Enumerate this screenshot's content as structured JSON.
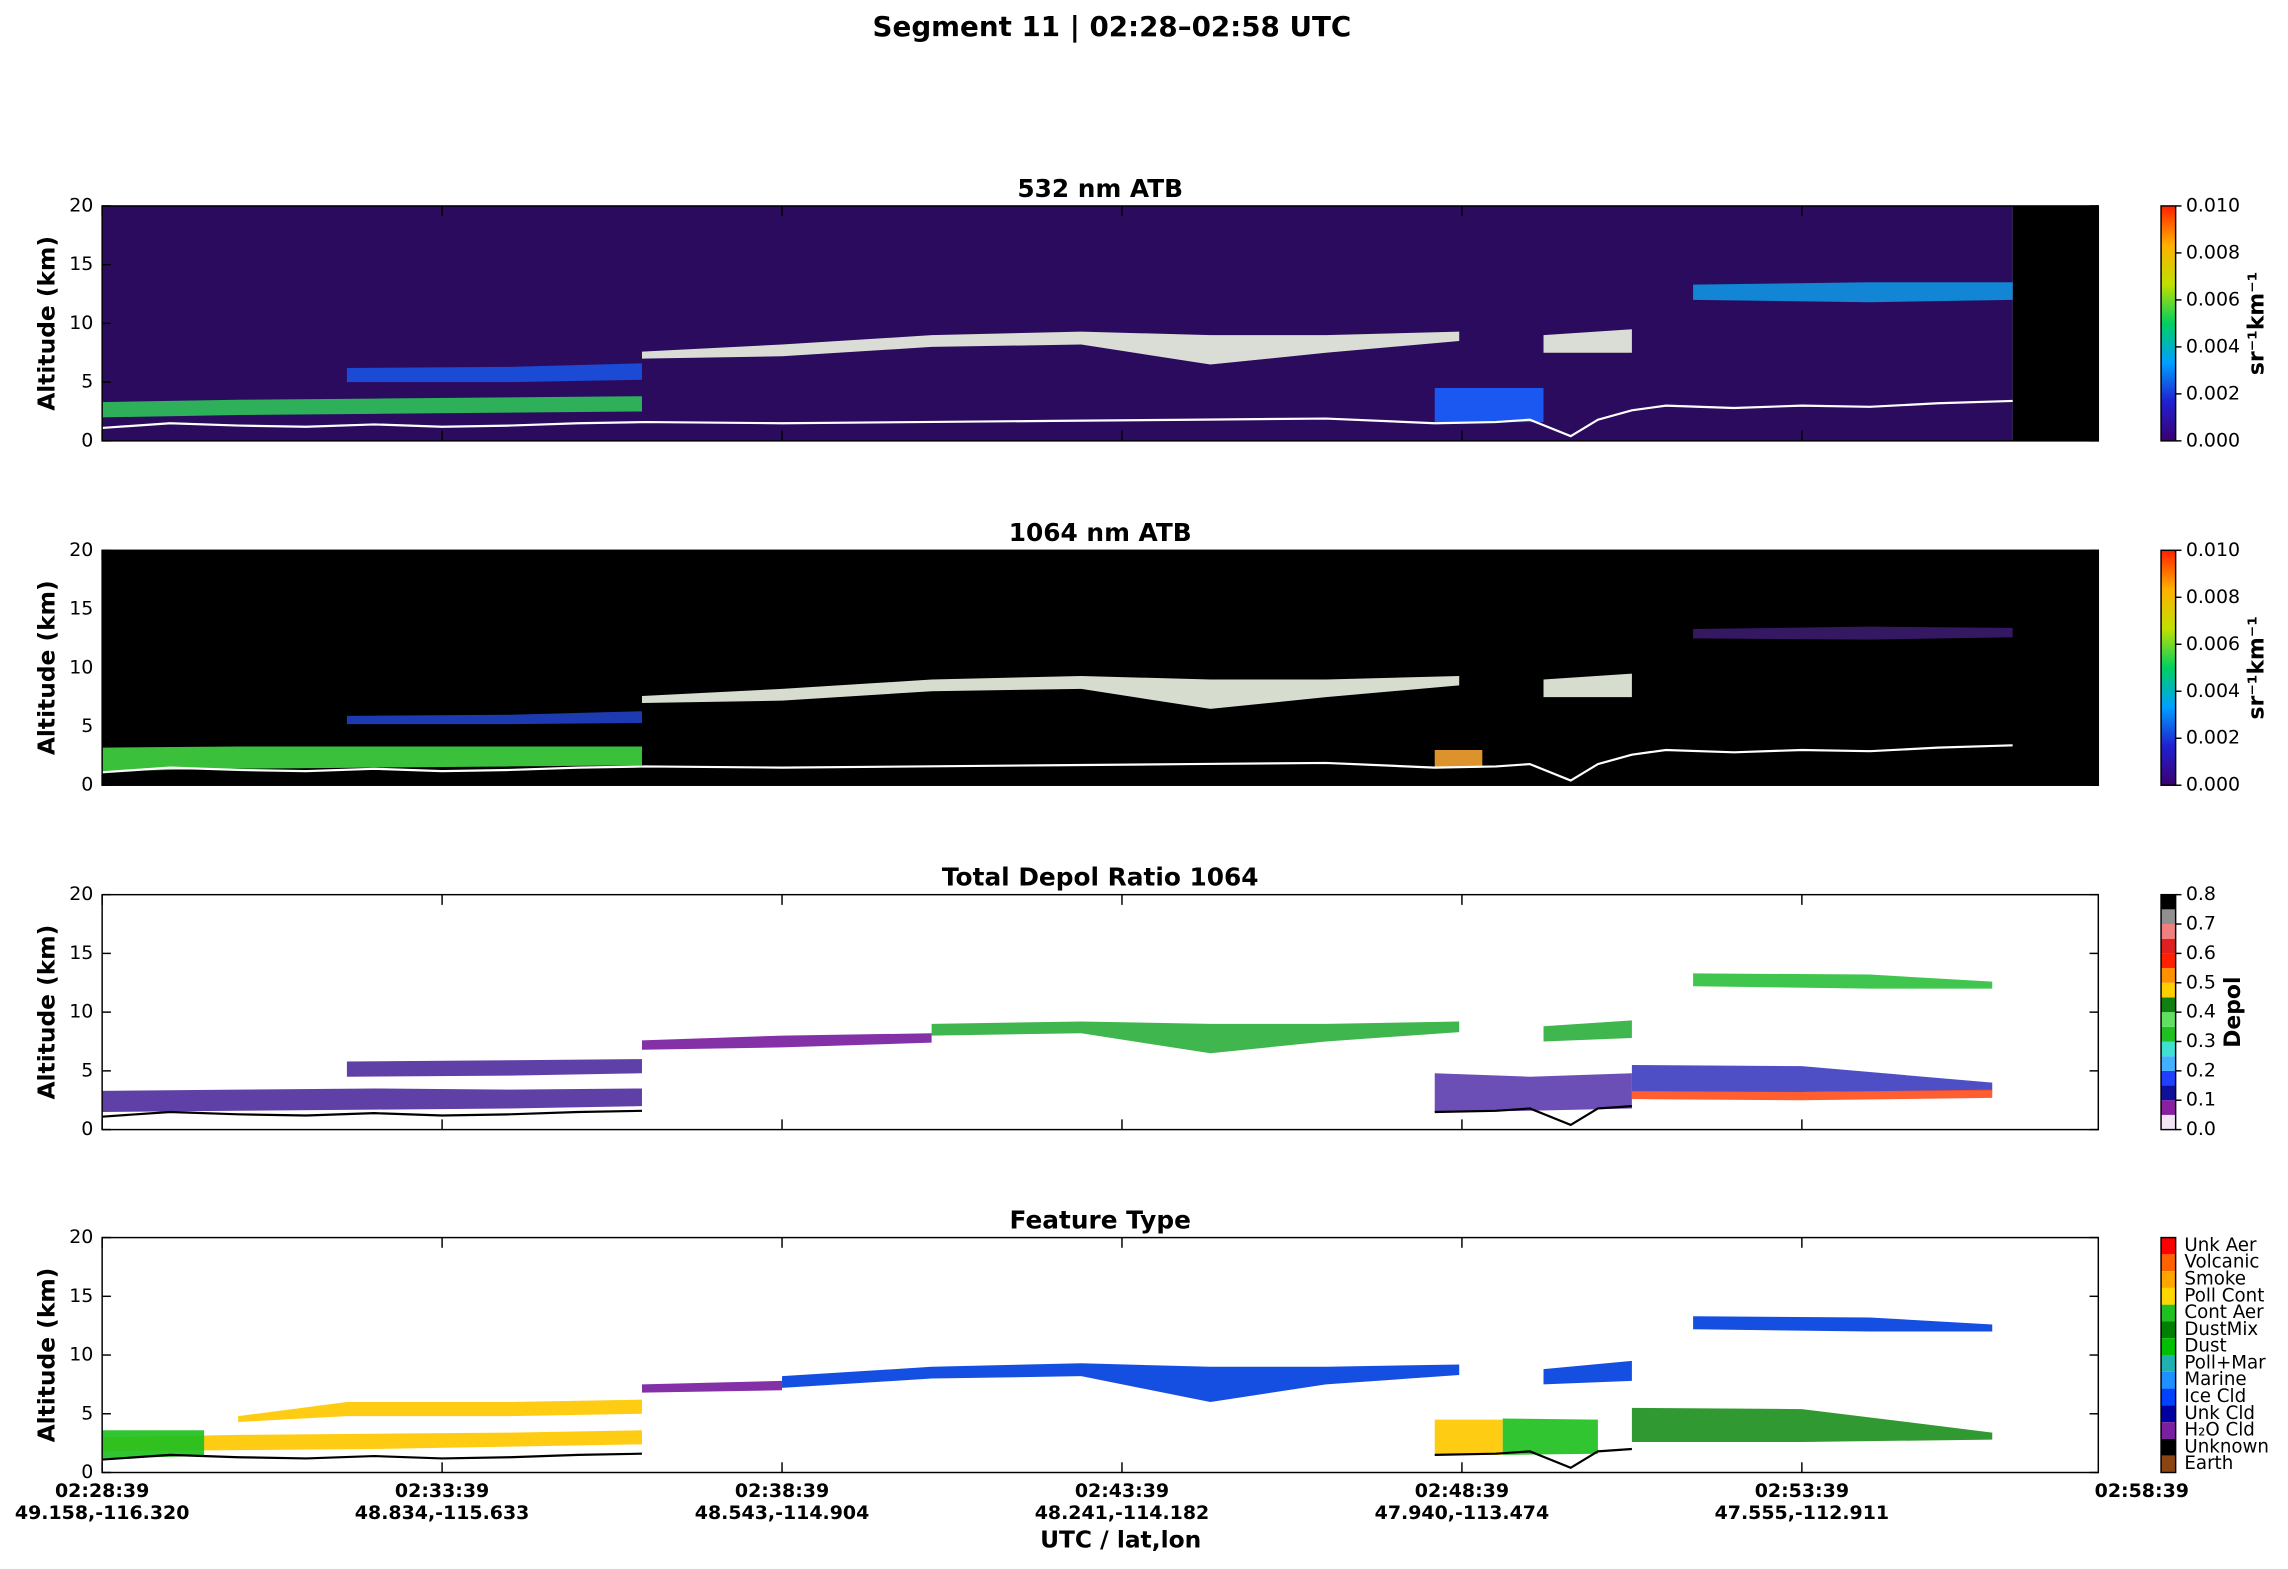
{
  "title": "Segment 11  |  02:28–02:58 UTC",
  "x_label": "UTC / lat,lon",
  "chart_data": [
    {
      "type": "curtain",
      "title": "532 nm ATB",
      "ylabel": "Altitude (km)",
      "xlim": [
        0,
        29.36
      ],
      "xticks": [
        0,
        5,
        10,
        15,
        20,
        25
      ],
      "xticklabels": false,
      "ylim": [
        0,
        20
      ],
      "yticks": [
        0,
        5,
        10,
        15,
        20
      ],
      "background": [
        {
          "color": "#2b0b5e",
          "x": [
            0,
            28.1
          ]
        },
        {
          "color": "#000000",
          "x": [
            28.1,
            29.36
          ]
        }
      ],
      "layers": [
        {
          "color": "#2fbf5a",
          "x": [
            0,
            2,
            4,
            6,
            7.94
          ],
          "base": [
            2,
            2.2,
            2.3,
            2.4,
            2.5
          ],
          "top": [
            3.3,
            3.5,
            3.6,
            3.7,
            3.8
          ]
        },
        {
          "color": "#1a50e0",
          "x": [
            3.6,
            6,
            7.94
          ],
          "base": [
            5,
            5,
            5.2
          ],
          "top": [
            6.2,
            6.3,
            6.6
          ]
        },
        {
          "color": "#e8f0e0",
          "x": [
            7.94,
            10,
            12.2,
            14.4,
            16.3,
            18,
            19.96
          ],
          "base": [
            7,
            7.2,
            8,
            8.2,
            6.5,
            7.5,
            8.5
          ],
          "top": [
            7.6,
            8.2,
            9,
            9.3,
            9,
            9,
            9.3
          ]
        },
        {
          "color": "#1a60ff",
          "x": [
            19.6,
            21.2
          ],
          "base": [
            1.6,
            1.6
          ],
          "top": [
            4.5,
            4.5
          ]
        },
        {
          "color": "#e8f0e0",
          "x": [
            21.2,
            22.5
          ],
          "base": [
            7.5,
            7.5
          ],
          "top": [
            9,
            9.5
          ]
        },
        {
          "color": "#1090e0",
          "x": [
            23.4,
            26,
            28.1
          ],
          "base": [
            12,
            11.8,
            12
          ],
          "top": [
            13.3,
            13.5,
            13.5
          ]
        }
      ],
      "surface": {
        "color": "#ffffff",
        "x": [
          0,
          1,
          2,
          3,
          4,
          5,
          6,
          7,
          8,
          10,
          12,
          14,
          16,
          18,
          19.6,
          20.5,
          21,
          21.6,
          22,
          22.5,
          23,
          24,
          25,
          26,
          27,
          28.1
        ],
        "values": [
          1.1,
          1.5,
          1.3,
          1.2,
          1.4,
          1.2,
          1.3,
          1.5,
          1.6,
          1.5,
          1.6,
          1.7,
          1.8,
          1.9,
          1.5,
          1.6,
          1.8,
          0.4,
          1.8,
          2.6,
          3.0,
          2.8,
          3.0,
          2.9,
          3.2,
          3.4
        ]
      },
      "colorbar": {
        "type": "gradient",
        "label": "sr⁻¹km⁻¹",
        "lim": [
          0,
          0.01
        ],
        "colors": [
          "#3b0070",
          "#2020d0",
          "#00a0ff",
          "#00d060",
          "#c0e000",
          "#ffb000",
          "#ff2000"
        ],
        "ticks": [
          {
            "value": 0,
            "label": "0.000"
          },
          {
            "value": 0.002,
            "label": "0.002"
          },
          {
            "value": 0.004,
            "label": "0.004"
          },
          {
            "value": 0.006,
            "label": "0.006"
          },
          {
            "value": 0.008,
            "label": "0.008"
          },
          {
            "value": 0.01,
            "label": "0.010"
          }
        ]
      }
    },
    {
      "type": "curtain",
      "title": "1064 nm ATB",
      "ylabel": "Altitude (km)",
      "xlim": [
        0,
        29.36
      ],
      "xticks": [
        0,
        5,
        10,
        15,
        20,
        25
      ],
      "xticklabels": false,
      "ylim": [
        0,
        20
      ],
      "yticks": [
        0,
        5,
        10,
        15,
        20
      ],
      "background": [
        {
          "color": "#000000",
          "x": [
            0,
            29.36
          ]
        }
      ],
      "layers": [
        {
          "color": "#40d040",
          "x": [
            0,
            2,
            4,
            6,
            7.94
          ],
          "base": [
            1.2,
            1.4,
            1.5,
            1.6,
            1.7
          ],
          "top": [
            3.2,
            3.3,
            3.3,
            3.3,
            3.3
          ]
        },
        {
          "color": "#2040c0",
          "x": [
            3.6,
            6,
            7.94
          ],
          "base": [
            5.2,
            5.2,
            5.3
          ],
          "top": [
            5.9,
            6.0,
            6.3
          ]
        },
        {
          "color": "#e8f0e0",
          "x": [
            7.94,
            10,
            12.2,
            14.4,
            16.3,
            18,
            19.96
          ],
          "base": [
            7,
            7.2,
            8,
            8.2,
            6.5,
            7.5,
            8.5
          ],
          "top": [
            7.6,
            8.2,
            9,
            9.3,
            9,
            9,
            9.3
          ]
        },
        {
          "color": "#f0a030",
          "x": [
            19.6,
            20.3
          ],
          "base": [
            1.5,
            1.5
          ],
          "top": [
            3,
            3
          ]
        },
        {
          "color": "#e8f0e0",
          "x": [
            21.2,
            22.5
          ],
          "base": [
            7.5,
            7.5
          ],
          "top": [
            9,
            9.5
          ]
        },
        {
          "color": "#3a1a6a",
          "x": [
            23.4,
            26,
            28.1
          ],
          "base": [
            12.5,
            12.4,
            12.6
          ],
          "top": [
            13.3,
            13.5,
            13.4
          ]
        }
      ],
      "surface": {
        "color": "#ffffff",
        "x": [
          0,
          1,
          2,
          3,
          4,
          5,
          6,
          7,
          8,
          10,
          12,
          14,
          16,
          18,
          19.6,
          20.5,
          21,
          21.6,
          22,
          22.5,
          23,
          24,
          25,
          26,
          27,
          28.1
        ],
        "values": [
          1.1,
          1.5,
          1.3,
          1.2,
          1.4,
          1.2,
          1.3,
          1.5,
          1.6,
          1.5,
          1.6,
          1.7,
          1.8,
          1.9,
          1.5,
          1.6,
          1.8,
          0.4,
          1.8,
          2.6,
          3.0,
          2.8,
          3.0,
          2.9,
          3.2,
          3.4
        ]
      },
      "colorbar": {
        "type": "gradient",
        "label": "sr⁻¹km⁻¹",
        "lim": [
          0,
          0.01
        ],
        "colors": [
          "#3b0070",
          "#2020d0",
          "#00a0ff",
          "#00d060",
          "#c0e000",
          "#ffb000",
          "#ff2000"
        ],
        "ticks": [
          {
            "value": 0,
            "label": "0.000"
          },
          {
            "value": 0.002,
            "label": "0.002"
          },
          {
            "value": 0.004,
            "label": "0.004"
          },
          {
            "value": 0.006,
            "label": "0.006"
          },
          {
            "value": 0.008,
            "label": "0.008"
          },
          {
            "value": 0.01,
            "label": "0.010"
          }
        ]
      }
    },
    {
      "type": "curtain",
      "title": "Total Depol Ratio 1064",
      "ylabel": "Altitude (km)",
      "xlim": [
        0,
        29.36
      ],
      "xticks": [
        0,
        5,
        10,
        15,
        20,
        25
      ],
      "xticklabels": false,
      "ylim": [
        0,
        20
      ],
      "yticks": [
        0,
        5,
        10,
        15,
        20
      ],
      "background": [
        {
          "color": "#ffffff",
          "x": [
            0,
            29.36
          ]
        }
      ],
      "layers": [
        {
          "color": "#5030a0",
          "x": [
            0,
            2,
            4,
            6,
            7.94
          ],
          "base": [
            1.5,
            1.6,
            1.7,
            1.8,
            2.0
          ],
          "top": [
            3.3,
            3.4,
            3.5,
            3.4,
            3.5
          ]
        },
        {
          "color": "#5030a0",
          "x": [
            3.6,
            6,
            7.94
          ],
          "base": [
            4.5,
            4.6,
            4.8
          ],
          "top": [
            5.8,
            5.9,
            6.0
          ]
        },
        {
          "color": "#7a1fa0",
          "x": [
            7.94,
            10,
            12.2
          ],
          "base": [
            6.8,
            7.0,
            7.4
          ],
          "top": [
            7.6,
            8.0,
            8.2
          ]
        },
        {
          "color": "#30b040",
          "x": [
            12.2,
            14.4,
            16.3,
            18,
            19.96
          ],
          "base": [
            8,
            8.2,
            6.5,
            7.5,
            8.3
          ],
          "top": [
            9,
            9.2,
            9,
            9,
            9.2
          ]
        },
        {
          "color": "#6040b0",
          "x": [
            19.6,
            21,
            22.5
          ],
          "base": [
            1.5,
            1.6,
            1.8
          ],
          "top": [
            4.8,
            4.5,
            4.8
          ]
        },
        {
          "color": "#30b040",
          "x": [
            21.2,
            22.5
          ],
          "base": [
            7.5,
            7.8
          ],
          "top": [
            8.8,
            9.3
          ]
        },
        {
          "color": "#4040c0",
          "x": [
            22.5,
            25,
            27.8
          ],
          "base": [
            3.2,
            3.2,
            3.3
          ],
          "top": [
            5.5,
            5.4,
            4.0
          ]
        },
        {
          "color": "#ff5020",
          "x": [
            22.5,
            25,
            27.8
          ],
          "base": [
            2.6,
            2.5,
            2.7
          ],
          "top": [
            3.3,
            3.2,
            3.4
          ]
        },
        {
          "color": "#30c040",
          "x": [
            23.4,
            26,
            27.8
          ],
          "base": [
            12.2,
            12,
            12
          ],
          "top": [
            13.3,
            13.2,
            12.6
          ]
        }
      ],
      "surface": {
        "color": "#000000",
        "x": [
          0,
          1,
          2,
          3,
          4,
          5,
          6,
          7,
          7.94,
          13,
          19.6,
          20.5,
          21,
          21.6,
          22,
          22.5
        ],
        "values": [
          1.1,
          1.5,
          1.3,
          1.2,
          1.4,
          1.2,
          1.3,
          1.5,
          1.6,
          null,
          1.5,
          1.6,
          1.8,
          0.4,
          1.8,
          2.0
        ]
      },
      "colorbar": {
        "type": "steps",
        "label": "Depol",
        "lim": [
          0,
          0.8
        ],
        "colors": [
          "#f2e6f6",
          "#8a1fa0",
          "#10109a",
          "#2040ff",
          "#40b0ff",
          "#40e0d0",
          "#20c020",
          "#60e060",
          "#108010",
          "#ffd000",
          "#ff9000",
          "#ff2000",
          "#e02020",
          "#f08080",
          "#909090",
          "#000000"
        ],
        "ticks": [
          {
            "value": 0,
            "label": "0.0"
          },
          0.1,
          0.2,
          0.3,
          0.4,
          0.5,
          0.6,
          0.7,
          0.8
        ]
      }
    },
    {
      "type": "curtain",
      "title": "Feature Type",
      "ylabel": "Altitude (km)",
      "xlim": [
        0,
        29.36
      ],
      "xticks": [
        {
          "value": 0,
          "label": "02:28:39"
        },
        {
          "value": 5,
          "label": "02:33:39"
        },
        {
          "value": 10,
          "label": "02:38:39"
        },
        {
          "value": 15,
          "label": "02:43:39"
        },
        {
          "value": 20,
          "label": "02:48:39"
        },
        {
          "value": 25,
          "label": "02:53:39"
        },
        {
          "value": 30,
          "label": "02:58:39"
        }
      ],
      "xtick_sublabels": [
        "49.158,-116.320",
        "48.834,-115.633",
        "48.543,-114.904",
        "48.241,-114.182",
        "47.940,-113.474",
        "47.555,-112.911",
        null
      ],
      "ylim": [
        0,
        20
      ],
      "yticks": [
        0,
        5,
        10,
        15,
        20
      ],
      "background": [
        {
          "color": "#ffffff",
          "x": [
            0,
            29.36
          ]
        }
      ],
      "layers": [
        {
          "color": "#ffc800",
          "x": [
            0,
            2,
            4,
            6,
            7.94
          ],
          "base": [
            1.8,
            1.9,
            2.0,
            2.2,
            2.4
          ],
          "top": [
            3.0,
            3.2,
            3.3,
            3.4,
            3.6
          ]
        },
        {
          "color": "#ffc800",
          "x": [
            2,
            3.6,
            6,
            7.94
          ],
          "base": [
            4.3,
            4.8,
            4.8,
            5.0
          ],
          "top": [
            4.8,
            6.0,
            6.0,
            6.2
          ]
        },
        {
          "color": "#20c020",
          "x": [
            0,
            1.5
          ],
          "base": [
            1.2,
            1.4
          ],
          "top": [
            3.6,
            3.6
          ]
        },
        {
          "color": "#7a1fa0",
          "x": [
            7.94,
            10
          ],
          "base": [
            6.8,
            7.0
          ],
          "top": [
            7.5,
            7.8
          ]
        },
        {
          "color": "#0040e0",
          "x": [
            10,
            12.2,
            14.4,
            16.3,
            18,
            19.96
          ],
          "base": [
            7.2,
            8,
            8.2,
            6.0,
            7.5,
            8.3
          ],
          "top": [
            8.2,
            9,
            9.3,
            9,
            9,
            9.2
          ]
        },
        {
          "color": "#ffc800",
          "x": [
            19.6,
            20.6
          ],
          "base": [
            1.5,
            1.5
          ],
          "top": [
            4.5,
            4.5
          ]
        },
        {
          "color": "#20c020",
          "x": [
            20.6,
            22
          ],
          "base": [
            1.5,
            1.6
          ],
          "top": [
            4.6,
            4.5
          ]
        },
        {
          "color": "#0040e0",
          "x": [
            21.2,
            22.5
          ],
          "base": [
            7.5,
            7.8
          ],
          "top": [
            8.8,
            9.5
          ]
        },
        {
          "color": "#209020",
          "x": [
            22.5,
            25,
            27.8
          ],
          "base": [
            2.6,
            2.6,
            2.8
          ],
          "top": [
            5.5,
            5.4,
            3.4
          ]
        },
        {
          "color": "#0040e0",
          "x": [
            23.4,
            26,
            27.8
          ],
          "base": [
            12.2,
            12,
            12
          ],
          "top": [
            13.3,
            13.2,
            12.6
          ]
        }
      ],
      "surface": {
        "color": "#000000",
        "x": [
          0,
          1,
          2,
          3,
          4,
          5,
          6,
          7,
          7.94,
          13,
          19.6,
          20.5,
          21,
          21.6,
          22,
          22.5
        ],
        "values": [
          1.1,
          1.5,
          1.3,
          1.2,
          1.4,
          1.2,
          1.3,
          1.5,
          1.6,
          null,
          1.5,
          1.6,
          1.8,
          0.4,
          1.8,
          2.0
        ]
      },
      "colorbar": {
        "type": "categorical",
        "categories": [
          "Unk Aer",
          "Volcanic",
          "Smoke",
          "Poll Cont",
          "Cont Aer",
          "DustMix",
          "Dust",
          "Poll+Mar",
          "Marine",
          "Ice Cld",
          "Unk Cld",
          "H₂O Cld",
          "Unknown",
          "Earth"
        ],
        "colors": [
          "#ff0000",
          "#ff6000",
          "#ffa500",
          "#ffd700",
          "#20c020",
          "#008000",
          "#00c000",
          "#20b0b0",
          "#1e90ff",
          "#0040ff",
          "#0000a0",
          "#7a1fa0",
          "#000000",
          "#8b4513"
        ]
      }
    }
  ]
}
